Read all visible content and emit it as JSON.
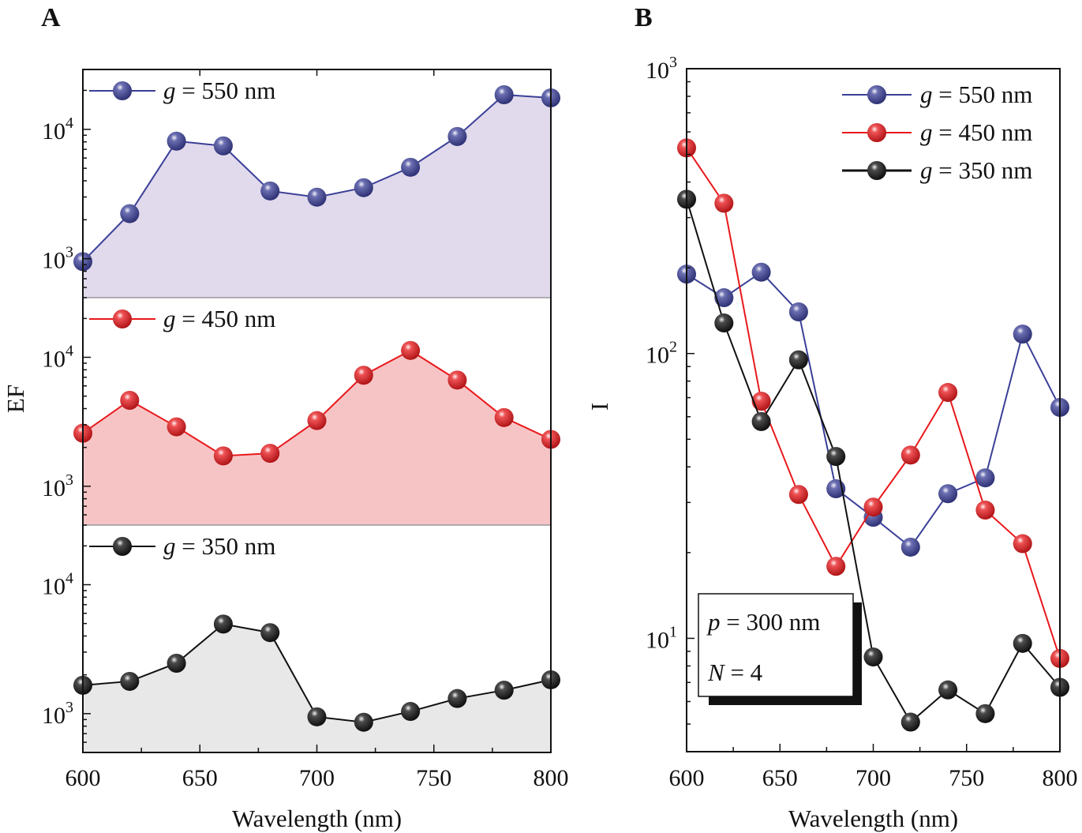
{
  "chart_data": [
    {
      "panel_label": "A",
      "type": "area",
      "ylabel": "EF",
      "xlabel": "Wavelength (nm)",
      "xlim": [
        600,
        800
      ],
      "xticks": [
        600,
        650,
        700,
        750,
        800
      ],
      "yscale": "log",
      "ylim": [
        500,
        29000
      ],
      "ytick_labels": [
        {
          "base": "10",
          "exp": "3",
          "value": 1000
        },
        {
          "base": "10",
          "exp": "4",
          "value": 10000
        }
      ],
      "x": [
        600,
        620,
        640,
        660,
        680,
        700,
        720,
        740,
        760,
        780,
        800
      ],
      "subplots": [
        {
          "name": "g = 550 nm",
          "gvar": "g",
          "rest": " = 550 nm",
          "color": "#3a3f98",
          "fill": "#e1d9ec",
          "values": [
            950,
            2230,
            8100,
            7450,
            3340,
            2990,
            3540,
            5090,
            8800,
            18500,
            17500
          ]
        },
        {
          "name": "g = 450 nm",
          "gvar": "g",
          "rest": " = 450 nm",
          "color": "#e8181b",
          "fill": "#f7c4c6",
          "values": [
            2580,
            4640,
            2890,
            1720,
            1800,
            3230,
            7260,
            11300,
            6660,
            3410,
            2310
          ]
        },
        {
          "name": "g = 350 nm",
          "gvar": "g",
          "rest": " = 350 nm",
          "color": "#111111",
          "fill": "#e8e8e8",
          "values": [
            1660,
            1780,
            2460,
            4950,
            4250,
            945,
            858,
            1040,
            1310,
            1520,
            1830
          ]
        }
      ],
      "grid": false
    },
    {
      "panel_label": "B",
      "type": "line",
      "ylabel": "I",
      "xlabel": "Wavelength (nm)",
      "xlim": [
        600,
        800
      ],
      "xticks": [
        600,
        650,
        700,
        750,
        800
      ],
      "yscale": "log",
      "ylim": [
        4,
        1000
      ],
      "ytick_labels": [
        {
          "base": "10",
          "exp": "1",
          "value": 10
        },
        {
          "base": "10",
          "exp": "2",
          "value": 100
        },
        {
          "base": "10",
          "exp": "3",
          "value": 1000
        }
      ],
      "x": [
        600,
        620,
        640,
        660,
        680,
        700,
        720,
        740,
        760,
        780,
        800
      ],
      "series": [
        {
          "name": "g = 550 nm",
          "gvar": "g",
          "rest": " = 550 nm",
          "color": "#3a3f98",
          "values": [
            190,
            157,
            193,
            140,
            33.5,
            26.6,
            20.9,
            32.2,
            36.6,
            117,
            64.7
          ]
        },
        {
          "name": "g = 450 nm",
          "gvar": "g",
          "rest": " = 450 nm",
          "color": "#e8181b",
          "values": [
            527,
            337,
            68,
            32,
            17.9,
            28.9,
            44,
            73,
            28.2,
            21.5,
            8.5
          ]
        },
        {
          "name": "g = 350 nm",
          "gvar": "g",
          "rest": " = 350 nm",
          "color": "#111111",
          "values": [
            348,
            128,
            57.7,
            95,
            43.5,
            8.6,
            5.08,
            6.59,
            5.44,
            9.6,
            6.73
          ]
        }
      ],
      "legend": "top-right",
      "annotation": {
        "line1_var": "p",
        "line1_rest": " = 300 nm",
        "line2_var": "N",
        "line2_rest": " = 4"
      },
      "grid": false
    }
  ]
}
